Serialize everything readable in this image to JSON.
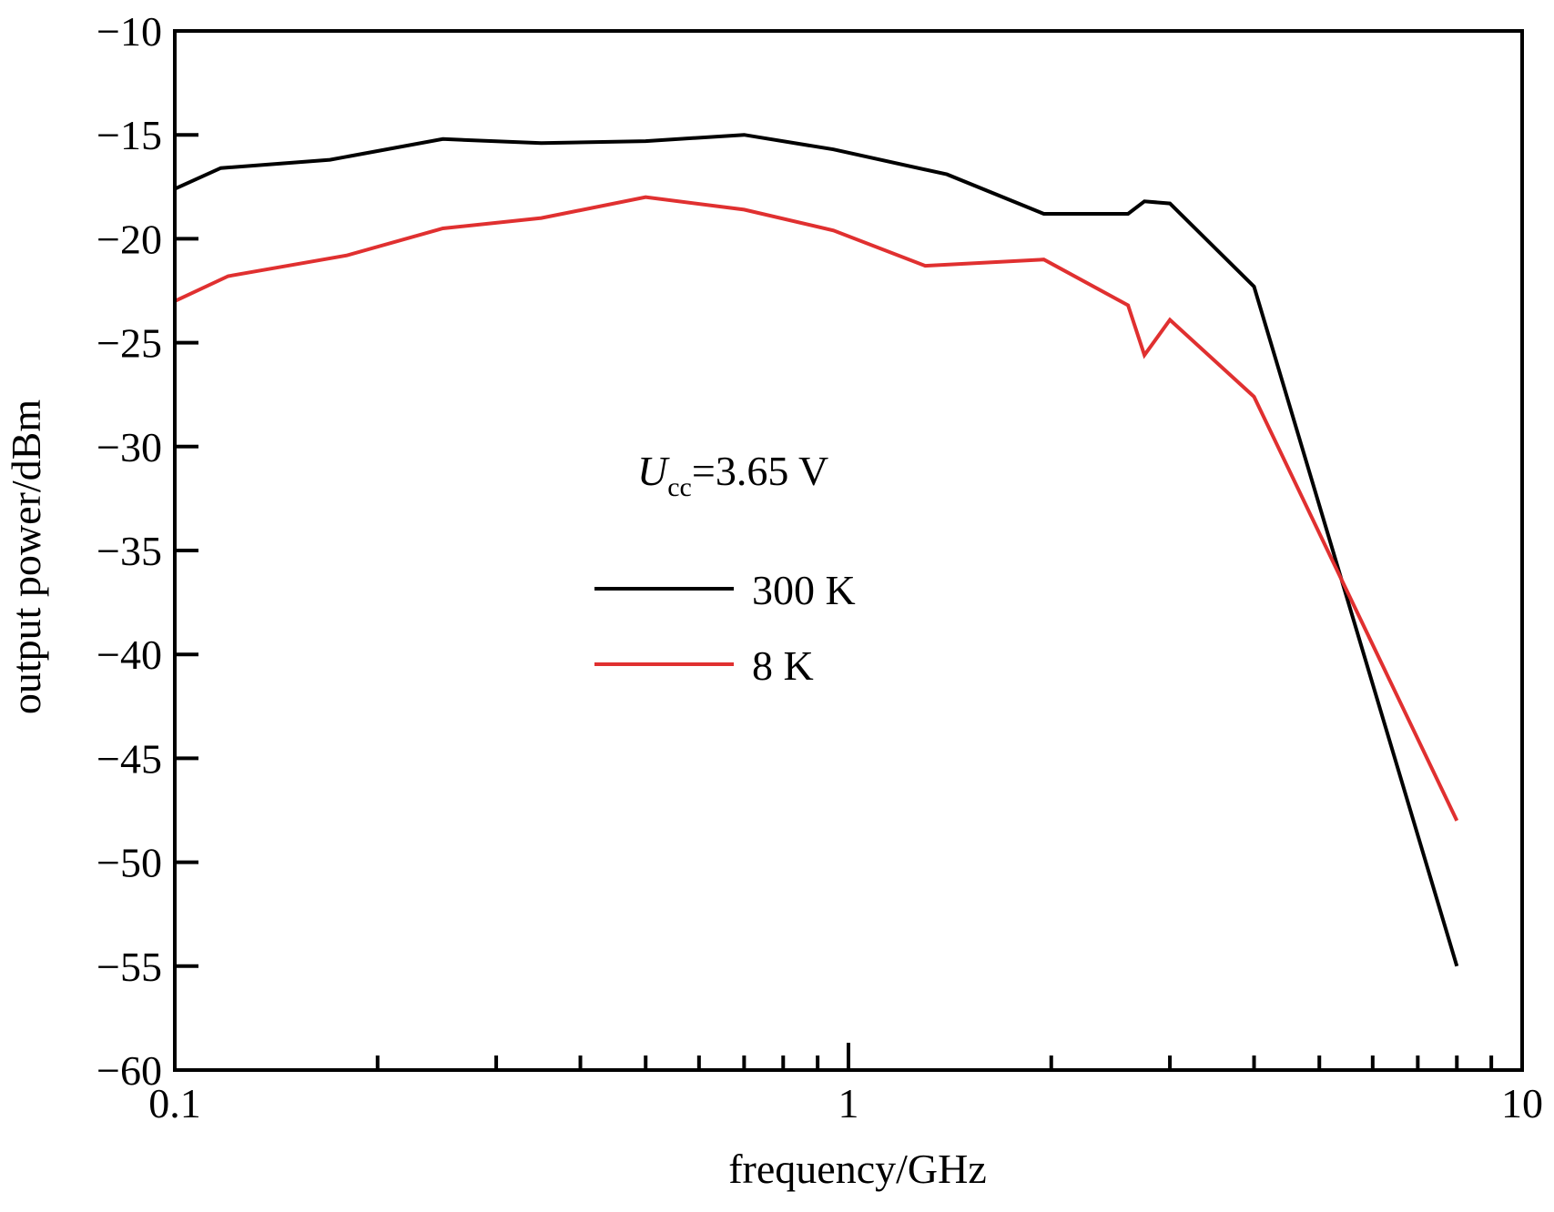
{
  "chart_data": {
    "type": "line",
    "xlabel": "frequency/GHz",
    "ylabel": "output power/dBm",
    "x_scale": "log",
    "xlim": [
      0.1,
      10
    ],
    "ylim": [
      -60,
      -10
    ],
    "x_ticks": [
      {
        "value": 0.1,
        "label": "0.1"
      },
      {
        "value": 1,
        "label": "1"
      },
      {
        "value": 10,
        "label": "10"
      }
    ],
    "y_ticks": [
      {
        "value": -10,
        "label": "−10"
      },
      {
        "value": -15,
        "label": "−15"
      },
      {
        "value": -20,
        "label": "−20"
      },
      {
        "value": -25,
        "label": "−25"
      },
      {
        "value": -30,
        "label": "−30"
      },
      {
        "value": -35,
        "label": "−35"
      },
      {
        "value": -40,
        "label": "−40"
      },
      {
        "value": -45,
        "label": "−45"
      },
      {
        "value": -50,
        "label": "−50"
      },
      {
        "value": -55,
        "label": "−55"
      },
      {
        "value": -60,
        "label": "−60"
      }
    ],
    "annotation": {
      "main": "U",
      "sub": "cc",
      "rest": "=3.65 V"
    },
    "legend_position": "center",
    "grid": false,
    "series": [
      {
        "name": "300 K",
        "color": "#000000",
        "points": [
          [
            0.1,
            -17.6
          ],
          [
            0.117,
            -16.6
          ],
          [
            0.17,
            -16.2
          ],
          [
            0.25,
            -15.2
          ],
          [
            0.35,
            -15.4
          ],
          [
            0.5,
            -15.3
          ],
          [
            0.7,
            -15.0
          ],
          [
            0.95,
            -15.7
          ],
          [
            1.4,
            -16.9
          ],
          [
            1.95,
            -18.8
          ],
          [
            2.6,
            -18.8
          ],
          [
            2.75,
            -18.2
          ],
          [
            3.0,
            -18.3
          ],
          [
            4.0,
            -22.3
          ],
          [
            8.0,
            -55.0
          ]
        ]
      },
      {
        "name": "8 K",
        "color": "#e03030",
        "points": [
          [
            0.1,
            -23.0
          ],
          [
            0.12,
            -21.8
          ],
          [
            0.18,
            -20.8
          ],
          [
            0.25,
            -19.5
          ],
          [
            0.35,
            -19.0
          ],
          [
            0.5,
            -18.0
          ],
          [
            0.7,
            -18.6
          ],
          [
            0.95,
            -19.6
          ],
          [
            1.3,
            -21.3
          ],
          [
            1.95,
            -21.0
          ],
          [
            2.6,
            -23.2
          ],
          [
            2.75,
            -25.6
          ],
          [
            3.0,
            -23.9
          ],
          [
            4.0,
            -27.6
          ],
          [
            8.0,
            -48.0
          ]
        ]
      }
    ]
  }
}
